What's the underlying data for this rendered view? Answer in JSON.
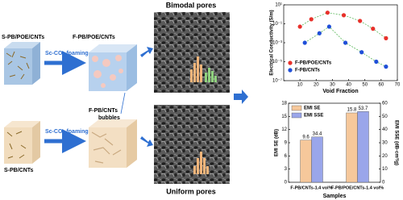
{
  "diagram": {
    "samples": [
      "S-PB/POE/CNTs",
      "F-PB/POE/CNTs",
      "S-PB/CNTs",
      "F-PB/CNTs"
    ],
    "process": [
      "Sc-CO₂ foaming",
      "Sc-CO₂ foaming"
    ],
    "annotation": "bubbles",
    "sem_titles": [
      "Bimodal pores",
      "Uniform pores"
    ]
  },
  "chart_data": [
    {
      "type": "scatter",
      "log_y": true,
      "ylabel": "Electrical Conductivity (S/m)",
      "xlabel": "Void Fraction",
      "xlim": [
        0,
        70
      ],
      "xticks": [
        10,
        20,
        30,
        40,
        50,
        60,
        70
      ],
      "ylim": [
        1e-07,
        10
      ],
      "yticks": [
        {
          "value": 10,
          "label": "10¹"
        },
        {
          "value": 0.1,
          "label": "10⁻¹"
        },
        {
          "value": 0.001,
          "label": "10⁻³"
        },
        {
          "value": 1e-05,
          "label": "10⁻⁵"
        },
        {
          "value": 1e-07,
          "label": "10⁻⁷"
        }
      ],
      "legend": "lower-left",
      "series": [
        {
          "name": "F-PB/POE/CNTs",
          "color": "#e8302a",
          "x": [
            10,
            17,
            27,
            37,
            47,
            55,
            63
          ],
          "values": [
            0.05,
            0.3,
            1.5,
            0.8,
            0.2,
            0.03,
            0.003
          ]
        },
        {
          "name": "F-PB/CNTs",
          "color": "#1f4fd8",
          "x": [
            13,
            22,
            28,
            38,
            48,
            57,
            63
          ],
          "values": [
            0.001,
            0.01,
            0.05,
            0.001,
            0.0001,
            1e-05,
            3e-06
          ]
        }
      ]
    },
    {
      "type": "bar",
      "xlabel": "Samples",
      "ylabel": "EMI SE (dB)",
      "y2label": "EMI SSE (dB·cm³/g)",
      "categories": [
        "F-PB/CNTs-1.4 vol%",
        "F-PB/POE/CNTs-1.4 vol%"
      ],
      "ylim": [
        0,
        18
      ],
      "yticks": [
        0,
        3,
        6,
        9,
        12,
        15,
        18
      ],
      "y2lim": [
        0,
        60
      ],
      "y2ticks": [
        0,
        10,
        20,
        30,
        40,
        50,
        60
      ],
      "legend": "upper-left",
      "series": [
        {
          "name": "EMI SE",
          "color": "#f6c89b",
          "values": [
            9.6,
            15.8
          ]
        },
        {
          "name": "EMI SSE",
          "color": "#9aa6ea",
          "axis": "y2",
          "values": [
            34.4,
            53.7
          ]
        }
      ]
    }
  ]
}
